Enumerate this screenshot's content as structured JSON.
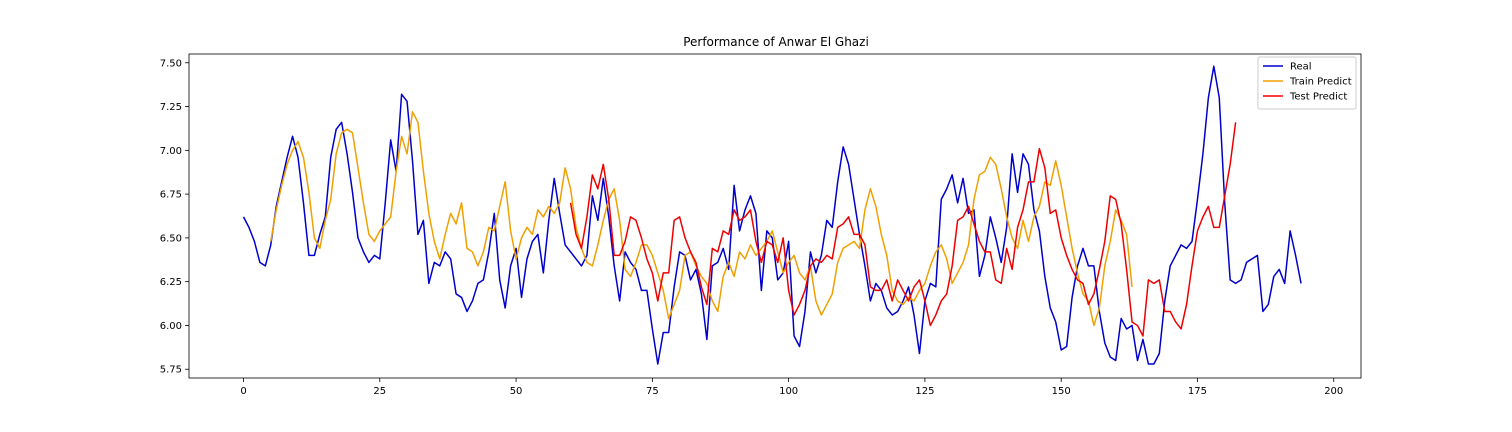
{
  "chart_data": {
    "type": "line",
    "title": "Performance of Anwar El Ghazi",
    "xlabel": "",
    "ylabel": "",
    "xlim": [
      -10,
      205
    ],
    "ylim": [
      5.7,
      7.55
    ],
    "xticks": [
      0,
      25,
      50,
      75,
      100,
      125,
      150,
      175,
      200
    ],
    "xtick_labels": [
      "0",
      "25",
      "50",
      "75",
      "100",
      "125",
      "150",
      "175",
      "200"
    ],
    "yticks": [
      5.75,
      6.0,
      6.25,
      6.5,
      6.75,
      7.0,
      7.25,
      7.5
    ],
    "ytick_labels": [
      "5.75",
      "6.00",
      "6.25",
      "6.50",
      "6.75",
      "7.00",
      "7.25",
      "7.50"
    ],
    "grid": false,
    "legend": {
      "position": "top-right"
    },
    "series": [
      {
        "name": "Real",
        "color": "#0000cc",
        "x_start": 0,
        "values": [
          6.62,
          6.56,
          6.48,
          6.36,
          6.34,
          6.46,
          6.68,
          6.82,
          6.96,
          7.08,
          6.96,
          6.7,
          6.4,
          6.4,
          6.52,
          6.62,
          6.96,
          7.12,
          7.16,
          6.98,
          6.76,
          6.5,
          6.42,
          6.36,
          6.4,
          6.38,
          6.7,
          7.06,
          6.88,
          7.32,
          7.28,
          6.94,
          6.52,
          6.6,
          6.24,
          6.36,
          6.34,
          6.42,
          6.38,
          6.18,
          6.16,
          6.08,
          6.14,
          6.24,
          6.26,
          6.42,
          6.64,
          6.26,
          6.1,
          6.34,
          6.44,
          6.16,
          6.38,
          6.48,
          6.52,
          6.3,
          6.6,
          6.84,
          6.64,
          6.46,
          6.42,
          6.38,
          6.34,
          6.4,
          6.74,
          6.6,
          6.84,
          6.62,
          6.34,
          6.14,
          6.42,
          6.36,
          6.32,
          6.2,
          6.2,
          5.98,
          5.78,
          5.96,
          5.96,
          6.22,
          6.42,
          6.4,
          6.26,
          6.32,
          6.18,
          5.92,
          6.34,
          6.36,
          6.44,
          6.32,
          6.8,
          6.54,
          6.66,
          6.74,
          6.64,
          6.2,
          6.54,
          6.5,
          6.26,
          6.3,
          6.48,
          5.94,
          5.88,
          6.08,
          6.42,
          6.3,
          6.4,
          6.6,
          6.56,
          6.82,
          7.02,
          6.92,
          6.72,
          6.52,
          6.34,
          6.14,
          6.24,
          6.2,
          6.1,
          6.06,
          6.08,
          6.14,
          6.22,
          6.06,
          5.84,
          6.14,
          6.24,
          6.22,
          6.72,
          6.78,
          6.86,
          6.7,
          6.84,
          6.64,
          6.66,
          6.28,
          6.4,
          6.62,
          6.5,
          6.36,
          6.56,
          6.98,
          6.76,
          6.98,
          6.92,
          6.66,
          6.54,
          6.28,
          6.1,
          6.02,
          5.86,
          5.88,
          6.16,
          6.34,
          6.44,
          6.34,
          6.34,
          6.08,
          5.9,
          5.82,
          5.8,
          6.04,
          5.98,
          6.0,
          5.8,
          5.92,
          5.78,
          5.78,
          5.84,
          6.14,
          6.34,
          6.4,
          6.46,
          6.44,
          6.48,
          6.72,
          6.98,
          7.3,
          7.48,
          7.3,
          6.7,
          6.26,
          6.24,
          6.26,
          6.36,
          6.38,
          6.4,
          6.08,
          6.12,
          6.28,
          6.32,
          6.24,
          6.54,
          6.4,
          6.24
        ]
      },
      {
        "name": "Train Predict",
        "color": "#f0a000",
        "x_start": 5,
        "values": [
          6.48,
          6.66,
          6.8,
          6.92,
          7.0,
          7.05,
          6.96,
          6.76,
          6.5,
          6.44,
          6.6,
          6.72,
          6.98,
          7.1,
          7.12,
          7.1,
          6.9,
          6.7,
          6.52,
          6.48,
          6.54,
          6.58,
          6.62,
          6.88,
          7.08,
          6.98,
          7.22,
          7.16,
          6.88,
          6.64,
          6.48,
          6.38,
          6.52,
          6.64,
          6.58,
          6.7,
          6.44,
          6.42,
          6.34,
          6.42,
          6.56,
          6.54,
          6.68,
          6.82,
          6.54,
          6.38,
          6.5,
          6.56,
          6.52,
          6.66,
          6.62,
          6.68,
          6.64,
          6.7,
          6.9,
          6.78,
          6.56,
          6.44,
          6.36,
          6.34,
          6.46,
          6.6,
          6.72,
          6.78,
          6.6,
          6.32,
          6.28,
          6.36,
          6.46,
          6.46,
          6.4,
          6.3,
          6.2,
          6.04,
          6.12,
          6.2,
          6.4,
          6.42,
          6.34,
          6.28,
          6.24,
          6.14,
          6.08,
          6.28,
          6.36,
          6.28,
          6.42,
          6.38,
          6.46,
          6.4,
          6.44,
          6.48,
          6.54,
          6.42,
          6.3,
          6.36,
          6.4,
          6.3,
          6.26,
          6.34,
          6.14,
          6.06,
          6.12,
          6.18,
          6.36,
          6.44,
          6.46,
          6.48,
          6.44,
          6.66,
          6.78,
          6.68,
          6.52,
          6.4,
          6.2,
          6.14,
          6.12,
          6.16,
          6.14,
          6.2,
          6.24,
          6.34,
          6.42,
          6.46,
          6.38,
          6.24,
          6.3,
          6.36,
          6.46,
          6.72,
          6.86,
          6.88,
          6.96,
          6.92,
          6.78,
          6.62,
          6.5,
          6.44,
          6.6,
          6.48,
          6.62,
          6.68,
          6.82,
          6.8,
          6.94,
          6.8,
          6.62,
          6.44,
          6.3,
          6.18,
          6.14,
          6.0,
          6.1,
          6.34,
          6.48,
          6.66,
          6.6,
          6.52,
          6.22
        ]
      },
      {
        "name": "Test Predict",
        "color": "#ee0000",
        "x_start": 60,
        "values": [
          6.7,
          6.52,
          6.44,
          6.62,
          6.86,
          6.78,
          6.92,
          6.72,
          6.4,
          6.4,
          6.48,
          6.62,
          6.6,
          6.5,
          6.38,
          6.3,
          6.14,
          6.3,
          6.3,
          6.6,
          6.62,
          6.5,
          6.42,
          6.36,
          6.22,
          6.12,
          6.44,
          6.42,
          6.54,
          6.52,
          6.66,
          6.6,
          6.62,
          6.66,
          6.48,
          6.36,
          6.48,
          6.46,
          6.36,
          6.5,
          6.2,
          6.06,
          6.12,
          6.2,
          6.34,
          6.38,
          6.36,
          6.4,
          6.38,
          6.56,
          6.58,
          6.62,
          6.52,
          6.52,
          6.46,
          6.22,
          6.2,
          6.2,
          6.26,
          6.14,
          6.26,
          6.2,
          6.14,
          6.22,
          6.26,
          6.14,
          6.0,
          6.06,
          6.14,
          6.18,
          6.34,
          6.6,
          6.62,
          6.68,
          6.58,
          6.48,
          6.42,
          6.42,
          6.26,
          6.24,
          6.44,
          6.32,
          6.56,
          6.66,
          6.82,
          6.82,
          7.01,
          6.9,
          6.64,
          6.66,
          6.5,
          6.4,
          6.32,
          6.26,
          6.24,
          6.12,
          6.18,
          6.32,
          6.48,
          6.74,
          6.72,
          6.58,
          6.32,
          6.02,
          6.0,
          5.94,
          6.26,
          6.24,
          6.26,
          6.08,
          6.08,
          6.02,
          5.98,
          6.12,
          6.34,
          6.54,
          6.62,
          6.68,
          6.56,
          6.56,
          6.74,
          6.92,
          7.16
        ]
      }
    ]
  }
}
